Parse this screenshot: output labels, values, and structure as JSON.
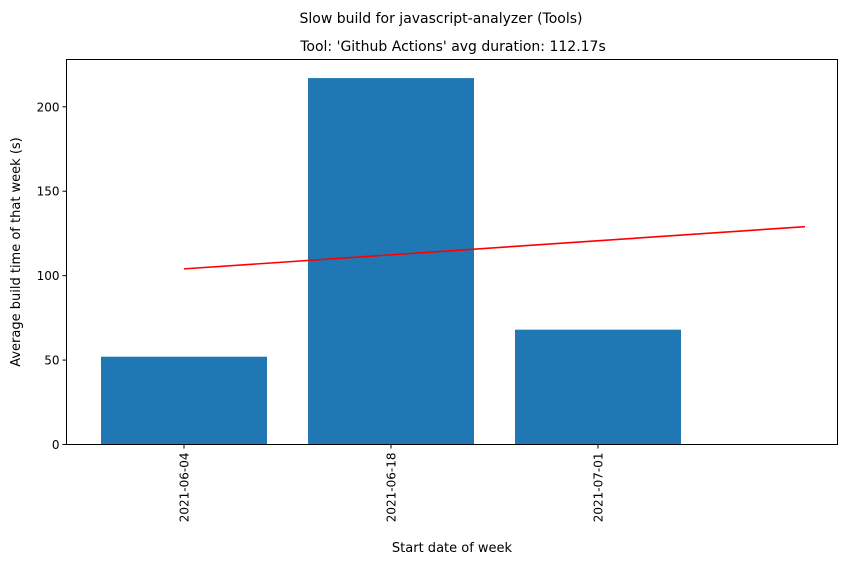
{
  "chart_data": {
    "type": "bar",
    "suptitle": "Slow build for javascript-analyzer (Tools)",
    "title": "Tool: 'Github Actions' avg duration: 112.17s",
    "xlabel": "Start date of week",
    "ylabel": "Average build time of that week (s)",
    "categories": [
      "2021-06-04",
      "2021-06-18",
      "2021-07-01"
    ],
    "values": [
      52,
      217,
      68
    ],
    "bar_color": "#1f77b4",
    "trend_color": "#ff0000",
    "trendline": {
      "x_start": 0,
      "x_end": 3,
      "y_start": 104,
      "y_end": 129
    },
    "ylim": [
      0,
      228
    ],
    "yticks": [
      0,
      50,
      100,
      150,
      200
    ],
    "grid": false
  }
}
